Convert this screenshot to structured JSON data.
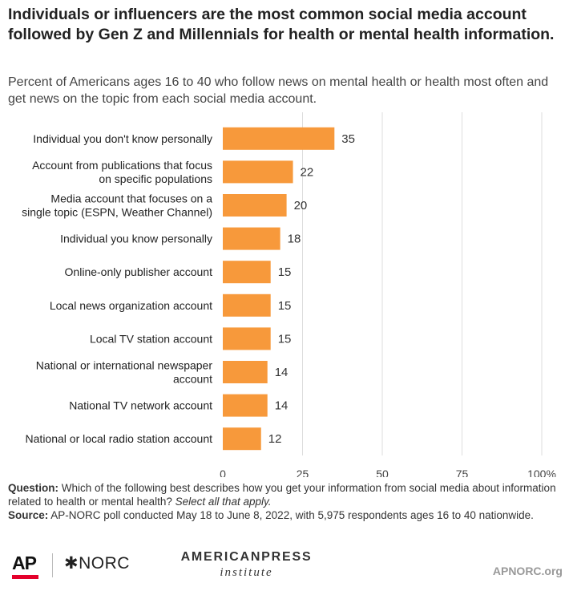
{
  "header": {
    "title": "Individuals or influencers are the most common social media account followed by Gen Z and Millennials for health or mental health information.",
    "subtitle": "Percent of Americans ages 16 to 40 who follow news on mental health or health most often and get news on the topic from each social media account."
  },
  "chart_data": {
    "type": "bar",
    "orientation": "horizontal",
    "title": "Individuals or influencers are the most common social media account followed by Gen Z and Millennials for health or mental health information.",
    "subtitle": "Percent of Americans ages 16 to 40 who follow news on mental health or health most often and get news on the topic from each social media account.",
    "categories": [
      [
        "Individual you don't know personally"
      ],
      [
        "Account from publications that focus",
        "on specific populations"
      ],
      [
        "Media account that focuses on a",
        "single topic (ESPN, Weather Channel)"
      ],
      [
        "Individual you know personally"
      ],
      [
        "Online-only publisher account"
      ],
      [
        "Local news organization account"
      ],
      [
        "Local TV station account"
      ],
      [
        "National or international newspaper",
        "account"
      ],
      [
        "National TV network account"
      ],
      [
        "National or local radio station account"
      ]
    ],
    "values": [
      35,
      22,
      20,
      18,
      15,
      15,
      15,
      14,
      14,
      12
    ],
    "xlim": [
      0,
      100
    ],
    "xticks": [
      "0",
      "25",
      "50",
      "75",
      "100%"
    ],
    "xtick_values": [
      0,
      25,
      50,
      75,
      100
    ],
    "bar_color": "#f7993b",
    "grid": true,
    "legend": "none"
  },
  "notes": {
    "question_label": "Question:",
    "question_text": "Which of the following best describes how you get your information from social media about information related to health or mental health?",
    "question_italic": "Select all that apply.",
    "source_label": "Source:",
    "source_text": "AP-NORC poll conducted May 18 to June 8, 2022, with 5,975 respondents ages 16 to 40 nationwide."
  },
  "footer": {
    "ap": "AP",
    "norc": "✱NORC",
    "api_top": "AMERICANPRESS",
    "api_bottom": "institute",
    "site": "APNORC.org"
  },
  "colors": {
    "accent": "#f7993b",
    "grid": "#dddddd",
    "ap_red": "#e4002b"
  }
}
